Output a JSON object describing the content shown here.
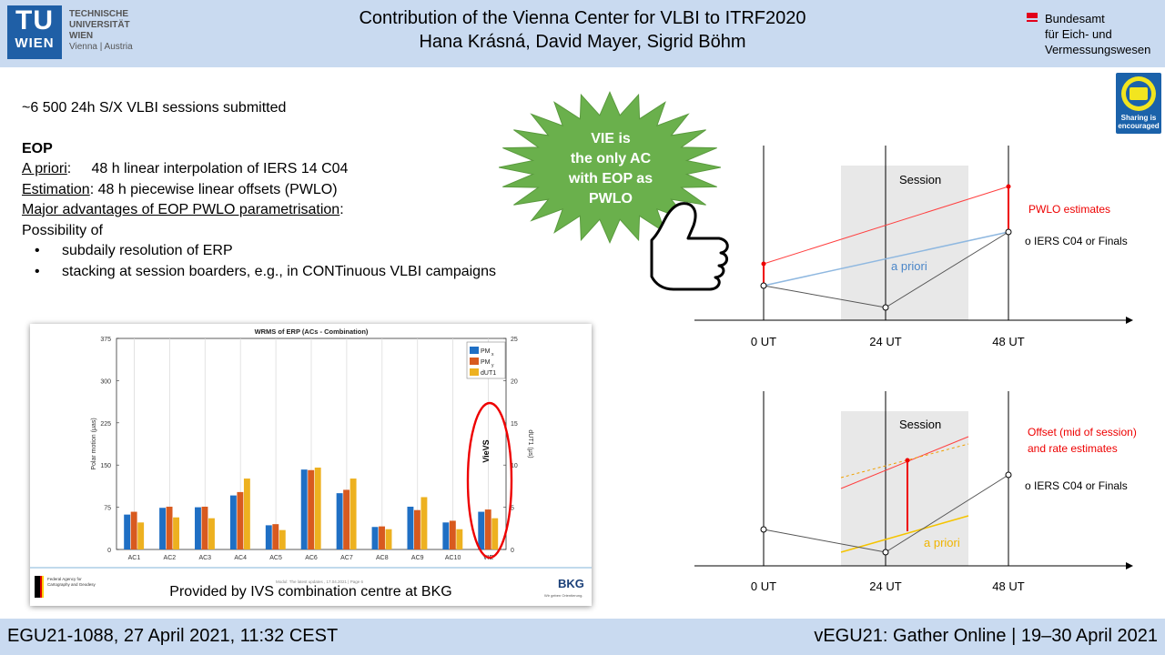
{
  "header": {
    "tu_logo_top": "TU",
    "tu_logo_bottom": "WIEN",
    "tu_name_lines": [
      "TECHNISCHE",
      "UNIVERSITÄT",
      "WIEN"
    ],
    "tu_location": "Vienna | Austria",
    "title": "Contribution of the Vienna Center for VLBI to ITRF2020",
    "authors": "Hana Krásná, David Mayer, Sigrid Böhm",
    "bev_lines": [
      "Bundesamt",
      "für Eich- und",
      "Vermessungswesen"
    ]
  },
  "badge": {
    "text_line1": "Sharing is",
    "text_line2": "encouraged",
    "icon": "camera-icon",
    "accent_color": "#f2e51f",
    "background_color": "#1b62aa"
  },
  "content": {
    "sessions": "~6 500 24h S/X VLBI sessions submitted",
    "eop_heading": "EOP",
    "apriori_label": "A priori",
    "apriori_text": ":     48 h linear interpolation of IERS 14 C04",
    "estimation_label": "Estimation",
    "estimation_text": ": 48 h piecewise linear offsets (PWLO)",
    "advantages_label": "Major advantages of EOP PWLO parametrisation",
    "advantages_colon": ":",
    "possibility": "Possibility of",
    "bullets": [
      "subdaily resolution of ERP",
      "stacking at session boarders, e.g., in CONTinuous VLBI campaigns"
    ],
    "bullet_symbol": "•"
  },
  "starburst": {
    "lines": [
      "VIE is",
      "the only AC",
      "with EOP as",
      "PWLO"
    ],
    "color": "#6ab04c"
  },
  "diagram_top": {
    "session_label": "Session",
    "pwlo_label": "PWLO estimates",
    "iers_label": "o IERS C04 or Finals",
    "apriori_label": "a priori",
    "x_labels": [
      "0 UT",
      "24 UT",
      "48 UT"
    ]
  },
  "diagram_bottom": {
    "session_label": "Session",
    "offset_label_line1": "Offset (mid of session)",
    "offset_label_line2": "and rate estimates",
    "iers_label": "o IERS C04 or Finals",
    "apriori_label": "a priori",
    "x_labels": [
      "0 UT",
      "24 UT",
      "48 UT"
    ]
  },
  "chart_data": {
    "type": "bar",
    "title": "WRMS of ERP (ACs - Combination)",
    "categories": [
      "AC1",
      "AC2",
      "AC3",
      "AC4",
      "AC5",
      "AC6",
      "AC7",
      "AC8",
      "AC9",
      "AC10",
      "VIE"
    ],
    "series": [
      {
        "name": "PMx",
        "axis": "left",
        "color": "#1f6fc4",
        "values": [
          62,
          74,
          75,
          96,
          43,
          142,
          100,
          40,
          76,
          48,
          67
        ]
      },
      {
        "name": "PMy",
        "axis": "left",
        "color": "#d85a1f",
        "values": [
          67,
          76,
          76,
          102,
          45,
          141,
          106,
          41,
          70,
          51,
          71
        ]
      },
      {
        "name": "dUT1",
        "axis": "right",
        "color": "#edb120",
        "values": [
          3.2,
          3.8,
          3.7,
          8.4,
          2.3,
          9.7,
          8.4,
          2.4,
          6.2,
          2.4,
          3.7
        ]
      }
    ],
    "ylabel_left": "Polar motion (μas)",
    "ylabel_right": "dUT1 (μs)",
    "ylim_left": [
      0,
      375
    ],
    "ylim_right": [
      0,
      25
    ],
    "yticks_left": [
      "0",
      "75",
      "150",
      "225",
      "300",
      "375"
    ],
    "yticks_right": [
      "0",
      "5",
      "10",
      "15",
      "20",
      "25"
    ],
    "legend": [
      "PM",
      "PM",
      "dUT1"
    ],
    "legend_subscripts": [
      "x",
      "y",
      ""
    ],
    "legend_position": "top-right",
    "grid": true,
    "annotation": "VieVS",
    "footer_text": "Modul: The latest updates  ,  17.04.2021 | Page 6",
    "agency_lines": [
      "Federal Agency for",
      "Cartography and Geodesy"
    ],
    "bkg_logo": "BKG",
    "bkg_sub": "Wir geben Orientierung."
  },
  "caption": "Provided by IVS combination centre at BKG",
  "footer": {
    "left": "EGU21-1088, 27 April 2021, 11:32 CEST",
    "right": "vEGU21: Gather Online | 19–30 April 2021"
  }
}
